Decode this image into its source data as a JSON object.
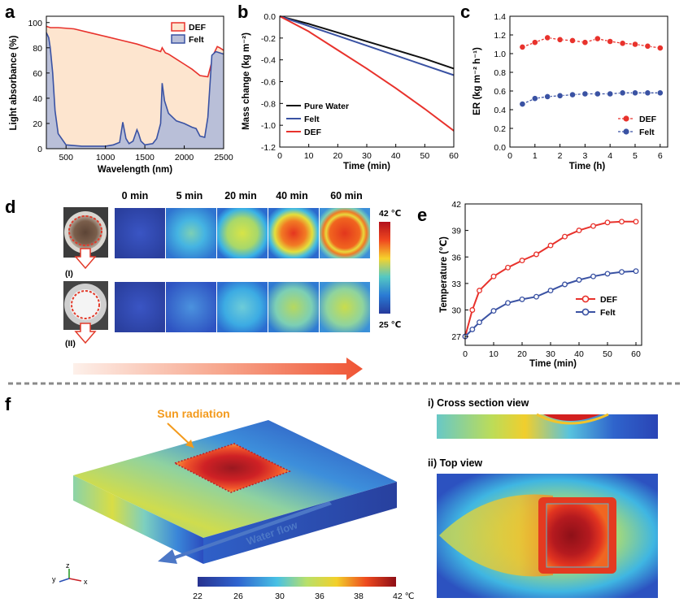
{
  "panel_labels": {
    "a": "a",
    "b": "b",
    "c": "c",
    "d": "d",
    "e": "e",
    "f": "f"
  },
  "chart_data": [
    {
      "id": "a",
      "type": "area",
      "title": "",
      "xlabel": "Wavelength (nm)",
      "ylabel": "Light absorbance (%)",
      "xlim": [
        250,
        2500
      ],
      "ylim": [
        0,
        105
      ],
      "xticks": [
        500,
        1000,
        1500,
        2000,
        2500
      ],
      "yticks": [
        0,
        20,
        40,
        60,
        80,
        100
      ],
      "legend": "top-right",
      "series": [
        {
          "name": "DEF",
          "color": "#e8322c",
          "fill": "#fde5cf",
          "x": [
            250,
            300,
            400,
            600,
            800,
            1000,
            1200,
            1400,
            1600,
            1700,
            1720,
            1760,
            1800,
            1900,
            2000,
            2100,
            2200,
            2300,
            2380,
            2420,
            2450,
            2500
          ],
          "y": [
            97,
            96,
            96,
            95,
            92,
            89,
            86,
            83,
            79,
            77,
            80,
            76,
            75,
            71,
            67,
            63,
            58,
            57,
            76,
            81,
            80,
            78
          ]
        },
        {
          "name": "Felt",
          "color": "#3a52a3",
          "fill": "#b9bfd8",
          "x": [
            250,
            280,
            300,
            330,
            360,
            400,
            500,
            700,
            900,
            1000,
            1100,
            1180,
            1220,
            1260,
            1300,
            1350,
            1400,
            1420,
            1450,
            1500,
            1600,
            1650,
            1700,
            1720,
            1750,
            1800,
            1900,
            2000,
            2100,
            2150,
            2200,
            2260,
            2300,
            2350,
            2400,
            2450,
            2500
          ],
          "y": [
            92,
            88,
            80,
            60,
            30,
            12,
            3,
            2,
            2,
            2,
            3,
            5,
            21,
            8,
            4,
            6,
            15,
            12,
            6,
            3,
            4,
            8,
            20,
            52,
            38,
            28,
            22,
            20,
            17,
            16,
            10,
            9,
            25,
            74,
            77,
            76,
            75
          ]
        }
      ]
    },
    {
      "id": "b",
      "type": "line",
      "title": "",
      "xlabel": "Time (min)",
      "ylabel": "Mass change (kg m⁻²)",
      "xlim": [
        0,
        60
      ],
      "ylim": [
        -1.2,
        0
      ],
      "xticks": [
        0,
        10,
        20,
        30,
        40,
        50,
        60
      ],
      "yticks": [
        0.0,
        -0.2,
        -0.4,
        -0.6,
        -0.8,
        -1.0,
        -1.2
      ],
      "ytick_labels": [
        "0.0",
        "-0.2",
        "-0.4",
        "-0.6",
        "-0.8",
        "-1.0",
        "-1.2"
      ],
      "legend": "bottom-left",
      "series": [
        {
          "name": "Pure Water",
          "color": "#111111",
          "x": [
            0,
            10,
            20,
            30,
            40,
            50,
            60
          ],
          "y": [
            0,
            -0.07,
            -0.15,
            -0.23,
            -0.31,
            -0.39,
            -0.48
          ]
        },
        {
          "name": "Felt",
          "color": "#3a52a3",
          "x": [
            0,
            10,
            20,
            30,
            40,
            50,
            60
          ],
          "y": [
            0,
            -0.09,
            -0.18,
            -0.27,
            -0.36,
            -0.45,
            -0.54
          ]
        },
        {
          "name": "DEF",
          "color": "#e8322c",
          "x": [
            0,
            10,
            20,
            30,
            40,
            50,
            60
          ],
          "y": [
            0,
            -0.14,
            -0.31,
            -0.48,
            -0.66,
            -0.85,
            -1.05
          ]
        }
      ]
    },
    {
      "id": "c",
      "type": "scatter",
      "title": "",
      "xlabel": "Time (h)",
      "ylabel": "ER (kg m⁻² h⁻¹)",
      "xlim": [
        0,
        6.3
      ],
      "ylim": [
        0,
        1.4
      ],
      "xticks": [
        0,
        1,
        2,
        3,
        4,
        5,
        6
      ],
      "yticks": [
        0.0,
        0.2,
        0.4,
        0.6,
        0.8,
        1.0,
        1.2,
        1.4
      ],
      "ytick_labels": [
        "0.0",
        "0.2",
        "0.4",
        "0.6",
        "0.8",
        "1.0",
        "1.2",
        "1.4"
      ],
      "legend": "bottom-right",
      "series": [
        {
          "name": "DEF",
          "color": "#e8322c",
          "x": [
            0.5,
            1.0,
            1.5,
            2.0,
            2.5,
            3.0,
            3.5,
            4.0,
            4.5,
            5.0,
            5.5,
            6.0
          ],
          "y": [
            1.07,
            1.12,
            1.17,
            1.15,
            1.14,
            1.12,
            1.16,
            1.13,
            1.11,
            1.1,
            1.08,
            1.06
          ]
        },
        {
          "name": "Felt",
          "color": "#3a52a3",
          "x": [
            0.5,
            1.0,
            1.5,
            2.0,
            2.5,
            3.0,
            3.5,
            4.0,
            4.5,
            5.0,
            5.5,
            6.0
          ],
          "y": [
            0.46,
            0.52,
            0.54,
            0.55,
            0.56,
            0.57,
            0.57,
            0.57,
            0.58,
            0.58,
            0.58,
            0.58
          ]
        }
      ]
    },
    {
      "id": "e",
      "type": "line",
      "title": "",
      "xlabel": "Time (min)",
      "ylabel": "Temperature (℃)",
      "xlim": [
        0,
        62
      ],
      "ylim": [
        26,
        42
      ],
      "xticks": [
        0,
        10,
        20,
        30,
        40,
        50,
        60
      ],
      "yticks": [
        27,
        30,
        33,
        36,
        39,
        42
      ],
      "legend": "bottom-right",
      "series": [
        {
          "name": "DEF",
          "color": "#e8322c",
          "x": [
            0,
            2.5,
            5,
            10,
            15,
            20,
            25,
            30,
            35,
            40,
            45,
            50,
            55,
            60
          ],
          "y": [
            27,
            30,
            32.2,
            33.8,
            34.8,
            35.6,
            36.3,
            37.3,
            38.3,
            39.0,
            39.5,
            39.9,
            40.0,
            40.0
          ]
        },
        {
          "name": "Felt",
          "color": "#3a52a3",
          "x": [
            0,
            2.5,
            5,
            10,
            15,
            20,
            25,
            30,
            35,
            40,
            45,
            50,
            55,
            60
          ],
          "y": [
            27,
            27.8,
            28.6,
            29.9,
            30.8,
            31.2,
            31.5,
            32.2,
            32.9,
            33.4,
            33.8,
            34.1,
            34.3,
            34.4
          ]
        }
      ]
    }
  ],
  "panel_d": {
    "time_labels": [
      "0 min",
      "5 min",
      "20 min",
      "40 min",
      "60 min"
    ],
    "row_labels": [
      "(I)",
      "(II)"
    ],
    "colorbar_max": "42 ℃",
    "colorbar_min": "25 ℃"
  },
  "panel_f": {
    "sun_label": "Sun radiation",
    "flow_label": "Water flow",
    "axes": {
      "x": "x",
      "y": "y",
      "z": "z"
    },
    "colorbar_ticks": [
      "22",
      "26",
      "30",
      "36",
      "38",
      "42 ℃"
    ],
    "cross_section_title": "i)  Cross section view",
    "top_view_title": "ii)  Top view"
  }
}
